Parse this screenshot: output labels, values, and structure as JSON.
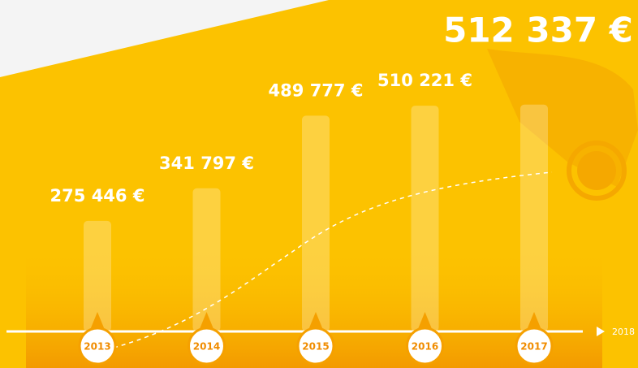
{
  "chart_data": {
    "type": "bar",
    "categories": [
      "2013",
      "2014",
      "2015",
      "2016",
      "2017"
    ],
    "values": [
      275446,
      341797,
      489777,
      510221,
      512337
    ],
    "value_labels": [
      "275 446 €",
      "341 797 €",
      "489 777 €",
      "510 221 €",
      "512 337 €"
    ],
    "ylim": [
      50000,
      560000
    ],
    "axis_end_label": "2018"
  }
}
